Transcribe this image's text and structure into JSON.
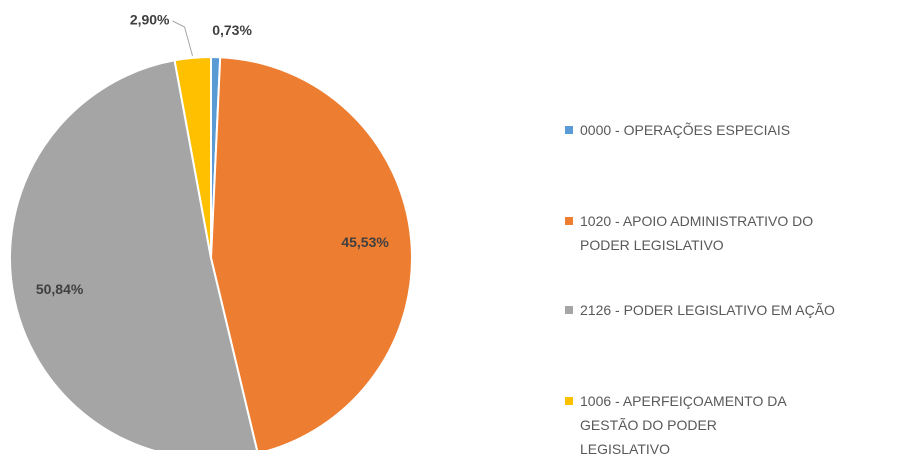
{
  "chart_data": {
    "type": "pie",
    "categories": [
      "0000 - OPERAÇÕES ESPECIAIS",
      "1020 - APOIO ADMINISTRATIVO DO PODER LEGISLATIVO",
      "2126 - PODER LEGISLATIVO EM AÇÃO",
      "1006 - APERFEIÇOAMENTO DA GESTÃO DO PODER LEGISLATIVO"
    ],
    "values": [
      0.73,
      45.53,
      50.84,
      2.9
    ],
    "value_labels": [
      "0,73%",
      "45,53%",
      "50,84%",
      "2,90%"
    ],
    "colors": [
      "#5b9bd5",
      "#ed7d31",
      "#a5a5a5",
      "#ffc000"
    ],
    "legend": "right"
  }
}
